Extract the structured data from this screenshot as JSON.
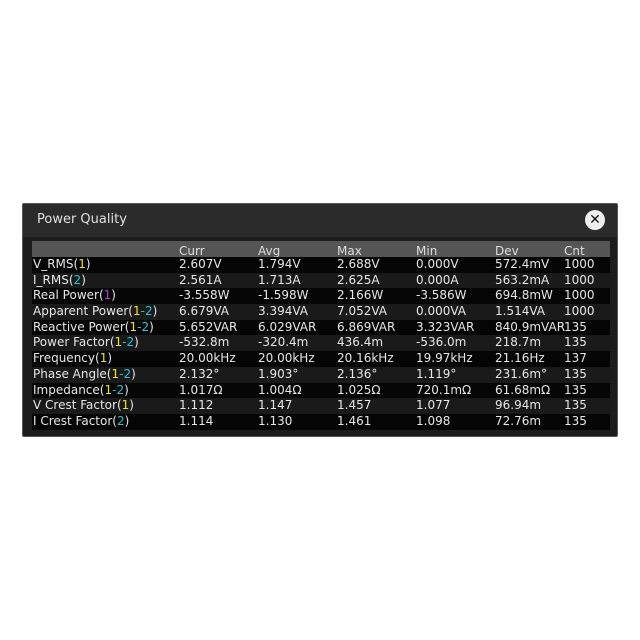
{
  "window": {
    "title": "Power Quality",
    "close_icon": "close-x-icon"
  },
  "colors": {
    "ch1": "#f2e31c",
    "ch2": "#1fc8d6",
    "math": "#b040e0"
  },
  "table": {
    "headers": [
      "",
      "Curr",
      "Avg",
      "Max",
      "Min",
      "Dev",
      "Cnt"
    ],
    "rows": [
      {
        "name": "V_RMS",
        "ch": [
          [
            "1",
            "ch1"
          ]
        ],
        "values": [
          "2.607V",
          "1.794V",
          "2.688V",
          "0.000V",
          "572.4mV",
          "1000"
        ]
      },
      {
        "name": "I_RMS",
        "ch": [
          [
            "2",
            "ch2"
          ]
        ],
        "values": [
          "2.561A",
          "1.713A",
          "2.625A",
          "0.000A",
          "563.2mA",
          "1000"
        ]
      },
      {
        "name": "Real Power",
        "ch": [
          [
            "1",
            "math"
          ]
        ],
        "values": [
          "-3.558W",
          "-1.598W",
          "2.166W",
          "-3.586W",
          "694.8mW",
          "1000"
        ]
      },
      {
        "name": "Apparent Power",
        "ch": [
          [
            "1",
            "ch1"
          ],
          [
            "-",
            "ch2"
          ],
          [
            "2",
            "ch2"
          ]
        ],
        "values": [
          "6.679VA",
          "3.394VA",
          "7.052VA",
          "0.000VA",
          "1.514VA",
          "1000"
        ]
      },
      {
        "name": "Reactive Power",
        "ch": [
          [
            "1",
            "ch1"
          ],
          [
            "-",
            "ch2"
          ],
          [
            "2",
            "ch2"
          ]
        ],
        "values": [
          "5.652VAR",
          "6.029VAR",
          "6.869VAR",
          "3.323VAR",
          "840.9mVAR",
          "135"
        ]
      },
      {
        "name": "Power Factor",
        "ch": [
          [
            "1",
            "ch1"
          ],
          [
            "-",
            "ch2"
          ],
          [
            "2",
            "ch2"
          ]
        ],
        "values": [
          "-532.8m",
          "-320.4m",
          "436.4m",
          "-536.0m",
          "218.7m",
          "135"
        ]
      },
      {
        "name": "Frequency",
        "ch": [
          [
            "1",
            "ch1"
          ]
        ],
        "values": [
          "20.00kHz",
          "20.00kHz",
          "20.16kHz",
          "19.97kHz",
          "21.16Hz",
          "137"
        ]
      },
      {
        "name": "Phase Angle",
        "ch": [
          [
            "1",
            "ch1"
          ],
          [
            "-",
            "ch2"
          ],
          [
            "2",
            "ch2"
          ]
        ],
        "values": [
          "2.132°",
          "1.903°",
          "2.136°",
          "1.119°",
          "231.6m°",
          "135"
        ]
      },
      {
        "name": "Impedance",
        "ch": [
          [
            "1",
            "ch1"
          ],
          [
            "-",
            "ch2"
          ],
          [
            "2",
            "ch2"
          ]
        ],
        "values": [
          "1.017Ω",
          "1.004Ω",
          "1.025Ω",
          "720.1mΩ",
          "61.68mΩ",
          "135"
        ]
      },
      {
        "name": "V Crest Factor",
        "ch": [
          [
            "1",
            "ch1"
          ]
        ],
        "values": [
          "1.112",
          "1.147",
          "1.457",
          "1.077",
          "96.94m",
          "135"
        ]
      },
      {
        "name": "I Crest Factor",
        "ch": [
          [
            "2",
            "ch2"
          ]
        ],
        "values": [
          "1.114",
          "1.130",
          "1.461",
          "1.098",
          "72.76m",
          "135"
        ]
      }
    ]
  }
}
